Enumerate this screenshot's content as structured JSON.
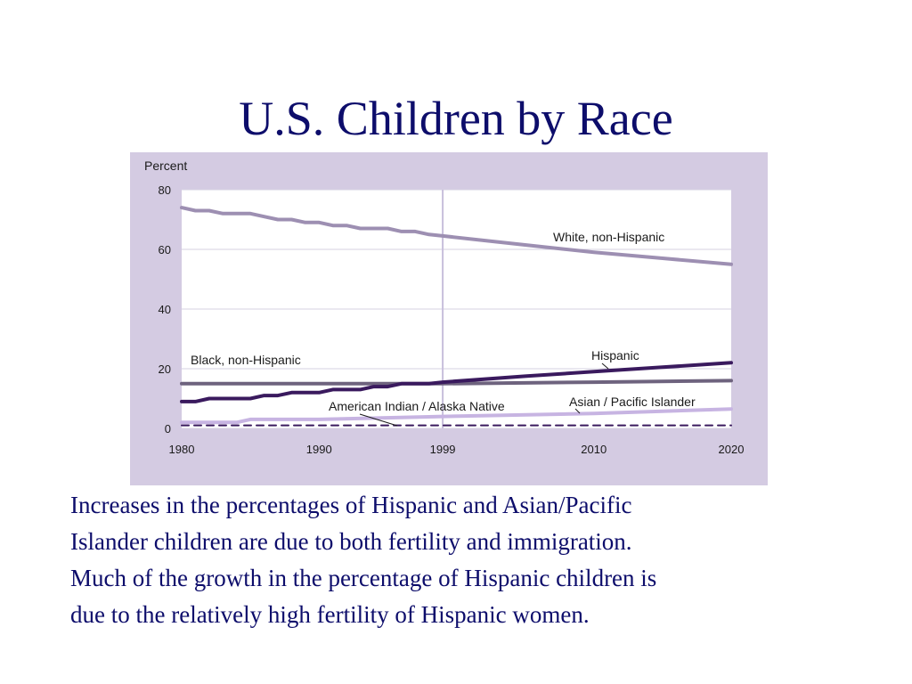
{
  "slide": {
    "title": "U.S. Children by Race",
    "caption_lines": [
      "Increases in the percentages of Hispanic and Asian/Pacific",
      "Islander children are due to both fertility and immigration.",
      "Much of the growth in the percentage of Hispanic children is",
      "due to the relatively high fertility of Hispanic women."
    ]
  },
  "colors": {
    "title": "#0d0d6b",
    "caption": "#0d0d6b",
    "panel": "#d4cbe2",
    "plot_bg": "#ffffff",
    "grid": "#d6d0e2",
    "divider": "#c8bfdc",
    "text": "#1a1a1a"
  },
  "chart_data": {
    "type": "line",
    "ylabel": "Percent",
    "xlabel": "",
    "xlim": [
      1980,
      2020
    ],
    "ylim": [
      0,
      80
    ],
    "yticks": [
      0,
      20,
      40,
      60,
      80
    ],
    "xticks": [
      1980,
      1990,
      1999,
      2010,
      2020
    ],
    "projection_divider_x": 1999,
    "grid": true,
    "legend": "inline labels",
    "series": [
      {
        "name": "White, non-Hispanic",
        "color": "#9d8fb2",
        "dashed": false,
        "points": [
          [
            1980,
            74
          ],
          [
            1981,
            73
          ],
          [
            1982,
            73
          ],
          [
            1983,
            72
          ],
          [
            1984,
            72
          ],
          [
            1985,
            72
          ],
          [
            1986,
            71
          ],
          [
            1987,
            70
          ],
          [
            1988,
            70
          ],
          [
            1989,
            69
          ],
          [
            1990,
            69
          ],
          [
            1991,
            68
          ],
          [
            1992,
            68
          ],
          [
            1993,
            67
          ],
          [
            1994,
            67
          ],
          [
            1995,
            67
          ],
          [
            1996,
            66
          ],
          [
            1997,
            66
          ],
          [
            1998,
            65
          ],
          [
            1999,
            64.5
          ],
          [
            2005,
            61.5
          ],
          [
            2010,
            59
          ],
          [
            2015,
            57
          ],
          [
            2020,
            55
          ]
        ]
      },
      {
        "name": "Black, non-Hispanic",
        "color": "#6e637e",
        "dashed": false,
        "points": [
          [
            1980,
            15
          ],
          [
            1990,
            15
          ],
          [
            1999,
            15
          ],
          [
            2010,
            15.5
          ],
          [
            2020,
            16
          ]
        ]
      },
      {
        "name": "Hispanic",
        "color": "#3a1a5e",
        "dashed": false,
        "points": [
          [
            1980,
            9
          ],
          [
            1981,
            9
          ],
          [
            1982,
            10
          ],
          [
            1983,
            10
          ],
          [
            1984,
            10
          ],
          [
            1985,
            10
          ],
          [
            1986,
            11
          ],
          [
            1987,
            11
          ],
          [
            1988,
            12
          ],
          [
            1989,
            12
          ],
          [
            1990,
            12
          ],
          [
            1991,
            13
          ],
          [
            1992,
            13
          ],
          [
            1993,
            13
          ],
          [
            1994,
            14
          ],
          [
            1995,
            14
          ],
          [
            1996,
            15
          ],
          [
            1997,
            15
          ],
          [
            1998,
            15
          ],
          [
            1999,
            15.5
          ],
          [
            2005,
            17.5
          ],
          [
            2010,
            19
          ],
          [
            2015,
            20.5
          ],
          [
            2020,
            22
          ]
        ]
      },
      {
        "name": "Asian / Pacific Islander",
        "color": "#c7b4e2",
        "dashed": false,
        "points": [
          [
            1980,
            2
          ],
          [
            1984,
            2
          ],
          [
            1985,
            3
          ],
          [
            1990,
            3
          ],
          [
            1999,
            4
          ],
          [
            2010,
            5
          ],
          [
            2020,
            6.5
          ]
        ]
      },
      {
        "name": "American Indian / Alaska Native",
        "color": "#3a1a5e",
        "dashed": true,
        "points": [
          [
            1980,
            1
          ],
          [
            2020,
            1
          ]
        ]
      }
    ]
  }
}
